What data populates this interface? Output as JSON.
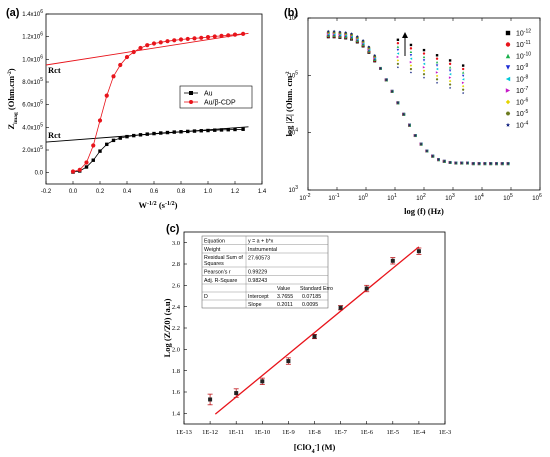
{
  "chart_data": [
    {
      "panel": "(a)",
      "type": "scatter",
      "xlabel": "W",
      "xlabel_sup": "-1/2",
      "xlabel_unit": "(s",
      "xlabel_unit_sup": "-1/2",
      "xlabel_close": ")",
      "ylabel": "Z",
      "ylabel_sub": "imag",
      "ylabel_unit": "(Ohm.cm",
      "ylabel_unit_sup": "-2",
      "ylabel_close": ")",
      "xlim": [
        -0.2,
        1.4
      ],
      "ylim": [
        -100000,
        1400000
      ],
      "xticks": [
        "-0.2",
        "0.0",
        "0.2",
        "0.4",
        "0.6",
        "0.8",
        "1.0",
        "1.2",
        "1.4"
      ],
      "yticks": [
        {
          "v": 0,
          "base": "0.0",
          "exp": ""
        },
        {
          "v": 200000,
          "base": "2.0x10",
          "exp": "5"
        },
        {
          "v": 400000,
          "base": "4.0x10",
          "exp": "5"
        },
        {
          "v": 600000,
          "base": "6.0x10",
          "exp": "5"
        },
        {
          "v": 800000,
          "base": "8.0x10",
          "exp": "5"
        },
        {
          "v": 1000000,
          "base": "1.0x10",
          "exp": "6"
        },
        {
          "v": 1200000,
          "base": "1.2x10",
          "exp": "6"
        },
        {
          "v": 1400000,
          "base": "1.4x10",
          "exp": "6"
        }
      ],
      "series": [
        {
          "name": "Au",
          "color": "#000000",
          "marker": "square",
          "x": [
            0,
            0.05,
            0.1,
            0.15,
            0.2,
            0.25,
            0.3,
            0.35,
            0.4,
            0.45,
            0.5,
            0.55,
            0.6,
            0.65,
            0.7,
            0.75,
            0.8,
            0.85,
            0.9,
            0.95,
            1.0,
            1.05,
            1.1,
            1.15,
            1.2,
            1.26
          ],
          "y": [
            5000,
            15000,
            50000,
            110000,
            190000,
            250000,
            285000,
            305000,
            318000,
            327000,
            334000,
            340000,
            345000,
            350000,
            354000,
            358000,
            361000,
            364000,
            367000,
            370000,
            372000,
            375000,
            377000,
            379000,
            381000,
            383000
          ]
        },
        {
          "name": "Au/β-CDP",
          "color": "#e8141b",
          "marker": "circle",
          "x": [
            0,
            0.05,
            0.1,
            0.15,
            0.2,
            0.25,
            0.3,
            0.35,
            0.4,
            0.45,
            0.5,
            0.55,
            0.6,
            0.65,
            0.7,
            0.75,
            0.8,
            0.85,
            0.9,
            0.95,
            1.0,
            1.05,
            1.1,
            1.15,
            1.2,
            1.26
          ],
          "y": [
            10000,
            25000,
            90000,
            240000,
            460000,
            680000,
            850000,
            950000,
            1020000,
            1065000,
            1100000,
            1125000,
            1140000,
            1150000,
            1160000,
            1168000,
            1175000,
            1180000,
            1185000,
            1190000,
            1196000,
            1202000,
            1207000,
            1212000,
            1218000,
            1225000
          ]
        }
      ],
      "fit_lines": [
        {
          "label": "Rct",
          "color": "#000000",
          "x": [
            -0.2,
            1.3
          ],
          "y": [
            270000,
            405000
          ]
        },
        {
          "label": "Rct",
          "color": "#e8141b",
          "x": [
            -0.2,
            1.3
          ],
          "y": [
            950000,
            1230000
          ]
        }
      ],
      "legend": "center-right"
    },
    {
      "panel": "(b)",
      "type": "scatter",
      "xlabel": "log (f) (Hz)",
      "ylabel": "log |Z| (Ohm. cm",
      "ylabel_sup": "-2",
      "ylabel_close": ")",
      "xscale": "log",
      "yscale": "log",
      "xlim_exp": [
        -2,
        6
      ],
      "ylim_exp": [
        3,
        6
      ],
      "xticks": [
        "-2",
        "-1",
        "0",
        "1",
        "2",
        "3",
        "4",
        "5",
        "6"
      ],
      "yticks": [
        "3",
        "4",
        "5",
        "6"
      ],
      "series": [
        {
          "name": "10",
          "exp": "-12",
          "color": "#000000",
          "marker": "square"
        },
        {
          "name": "10",
          "exp": "-11",
          "color": "#e8141b",
          "marker": "circle"
        },
        {
          "name": "10",
          "exp": "-10",
          "color": "#19b04b",
          "marker": "triangle-up"
        },
        {
          "name": "10",
          "exp": "-9",
          "color": "#1b2bd4",
          "marker": "triangle-down"
        },
        {
          "name": "10",
          "exp": "-8",
          "color": "#00c7d9",
          "marker": "triangle-left"
        },
        {
          "name": "10",
          "exp": "-7",
          "color": "#c61ac7",
          "marker": "triangle-right"
        },
        {
          "name": "10",
          "exp": "-6",
          "color": "#e5d400",
          "marker": "diamond"
        },
        {
          "name": "10",
          "exp": "-5",
          "color": "#6b7a1e",
          "marker": "hexagon"
        },
        {
          "name": "10",
          "exp": "-4",
          "color": "#10207e",
          "marker": "star"
        }
      ],
      "curve": {
        "x_exp": [
          -1.3,
          -1.1,
          -0.9,
          -0.7,
          -0.5,
          -0.3,
          -0.1,
          0.1,
          0.3,
          0.5,
          0.7,
          0.9,
          1.1,
          1.3,
          1.5,
          1.7,
          1.9,
          2.1,
          2.3,
          2.5,
          2.7,
          2.9,
          3.1,
          3.3,
          3.5,
          3.7,
          3.9,
          4.1,
          4.3,
          4.5,
          4.7,
          4.9
        ],
        "y_exp": [
          5.72,
          5.72,
          5.71,
          5.7,
          5.68,
          5.63,
          5.56,
          5.45,
          5.3,
          5.12,
          4.92,
          4.72,
          4.52,
          4.32,
          4.13,
          3.95,
          3.8,
          3.68,
          3.59,
          3.53,
          3.5,
          3.48,
          3.47,
          3.47,
          3.47,
          3.46,
          3.46,
          3.46,
          3.46,
          3.46,
          3.46,
          3.46
        ]
      },
      "arrow": "up"
    },
    {
      "panel": "(c)",
      "type": "scatter",
      "xlabel": "[ClO",
      "xlabel_sub": "4",
      "xlabel_sup": "-",
      "xlabel_close": "] (M)",
      "ylabel": "Log (Z/Z0) (a.u)",
      "ylim": [
        1.3,
        3.1
      ],
      "xticks": [
        "1E-13",
        "1E-12",
        "1E-11",
        "1E-10",
        "1E-9",
        "1E-8",
        "1E-7",
        "1E-6",
        "1E-5",
        "1E-4",
        "1E-3"
      ],
      "yticks": [
        "1.4",
        "1.6",
        "1.8",
        "2.0",
        "2.2",
        "2.4",
        "2.6",
        "2.8",
        "3.0"
      ],
      "x_exp": [
        -12,
        -11,
        -10,
        -9,
        -8,
        -7,
        -6,
        -5,
        -4
      ],
      "y": [
        1.53,
        1.59,
        1.7,
        1.89,
        2.12,
        2.39,
        2.57,
        2.83,
        2.92
      ],
      "yerr": [
        0.05,
        0.04,
        0.03,
        0.03,
        0.02,
        0.02,
        0.03,
        0.03,
        0.03
      ],
      "fit": {
        "intercept": 3.7655,
        "slope": 0.2011,
        "x_exp": [
          -12,
          -4
        ],
        "color": "#e8141b"
      },
      "table": [
        [
          "Equation",
          "y = a + b*x",
          ""
        ],
        [
          "Weight",
          "Instrumental",
          ""
        ],
        [
          "Residual Sum of Squares",
          "27.60573",
          ""
        ],
        [
          "Pearson's r",
          "0.99229",
          ""
        ],
        [
          "Adj. R-Square",
          "0.98243",
          ""
        ],
        [
          "",
          "Value",
          "Standard Erro"
        ],
        [
          "D",
          "Intercept",
          "3.7655",
          "0.07185"
        ],
        [
          "",
          "Slope",
          "0.2011",
          "0.0095"
        ]
      ]
    }
  ]
}
